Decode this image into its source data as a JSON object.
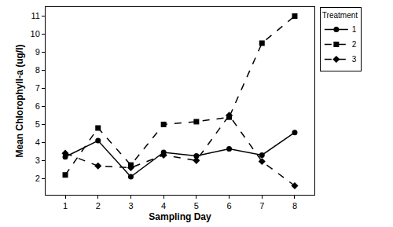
{
  "chart_data": {
    "type": "line",
    "x_label": "Sampling Day",
    "y_label": "Mean Chlorophyll-a (ug/l)",
    "legend_title": "Treatment",
    "legend": "right",
    "grid": false,
    "x": [
      1,
      2,
      3,
      4,
      5,
      6,
      7,
      8
    ],
    "xlim": [
      0.4,
      8.6
    ],
    "xticks": [
      1,
      2,
      3,
      4,
      5,
      6,
      7,
      8
    ],
    "ylim": [
      1.1,
      11.5
    ],
    "yticks": [
      2,
      3,
      4,
      5,
      6,
      7,
      8,
      9,
      10,
      11
    ],
    "series": [
      {
        "name": "1",
        "color": "#000000",
        "marker": "circle",
        "line_style": "solid",
        "values": [
          3.2,
          4.1,
          2.1,
          3.45,
          3.25,
          3.65,
          3.3,
          4.55
        ]
      },
      {
        "name": "2",
        "color": "#000000",
        "marker": "square",
        "line_style": "dashed",
        "values": [
          2.2,
          4.8,
          2.75,
          5.0,
          5.15,
          5.4,
          9.5,
          11.0
        ]
      },
      {
        "name": "3",
        "color": "#000000",
        "marker": "diamond",
        "line_style": "dashed",
        "values": [
          3.4,
          2.7,
          2.6,
          3.3,
          3.0,
          5.5,
          2.95,
          1.6
        ]
      }
    ]
  }
}
